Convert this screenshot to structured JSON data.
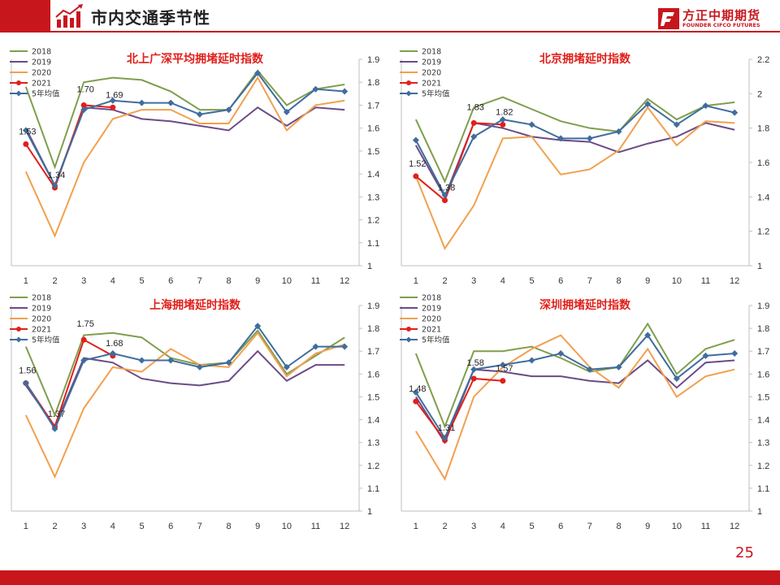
{
  "header": {
    "title": "市内交通季节性"
  },
  "logo": {
    "cn": "方正中期期货",
    "en": "FOUNDER CIFCO FUTURES"
  },
  "page_number": "25",
  "colors": {
    "s2018": "#7f9e4e",
    "s2019": "#6b4c86",
    "s2020": "#f2a04f",
    "s2021": "#e0201b",
    "avg": "#3f6d9e",
    "brand": "#c8161d"
  },
  "chart_data": [
    {
      "type": "line",
      "title": "北上广深平均拥堵延时指数",
      "x": [
        1,
        2,
        3,
        4,
        5,
        6,
        7,
        8,
        9,
        10,
        11,
        12
      ],
      "ylim": [
        1,
        1.9
      ],
      "yticks": [
        "1",
        "1.1",
        "1.2",
        "1.3",
        "1.4",
        "1.5",
        "1.6",
        "1.7",
        "1.8",
        "1.9"
      ],
      "series": [
        {
          "name": "2018",
          "values": [
            1.78,
            1.43,
            1.8,
            1.82,
            1.81,
            1.76,
            1.68,
            1.68,
            1.85,
            1.7,
            1.77,
            1.79
          ]
        },
        {
          "name": "2019",
          "values": [
            1.6,
            1.35,
            1.69,
            1.68,
            1.64,
            1.63,
            1.61,
            1.59,
            1.69,
            1.61,
            1.69,
            1.68
          ]
        },
        {
          "name": "2020",
          "values": [
            1.41,
            1.13,
            1.45,
            1.64,
            1.68,
            1.68,
            1.62,
            1.62,
            1.82,
            1.59,
            1.7,
            1.72
          ]
        },
        {
          "name": "2021",
          "values": [
            1.53,
            1.34,
            1.7,
            1.69
          ]
        },
        {
          "name": "5年均值",
          "values": [
            1.59,
            1.35,
            1.68,
            1.72,
            1.71,
            1.71,
            1.66,
            1.68,
            1.84,
            1.67,
            1.77,
            1.76
          ]
        }
      ],
      "labels": [
        "1.53",
        "1.34",
        "1.70",
        "1.69"
      ],
      "legend": "top-left"
    },
    {
      "type": "line",
      "title": "北京拥堵延时指数",
      "x": [
        1,
        2,
        3,
        4,
        5,
        6,
        7,
        8,
        9,
        10,
        11,
        12
      ],
      "ylim": [
        1,
        2.2
      ],
      "yticks": [
        "1",
        "1.2",
        "1.4",
        "1.6",
        "1.8",
        "2",
        "2.2"
      ],
      "series": [
        {
          "name": "2018",
          "values": [
            1.85,
            1.49,
            1.92,
            1.98,
            1.91,
            1.84,
            1.8,
            1.78,
            1.97,
            1.85,
            1.93,
            1.95
          ]
        },
        {
          "name": "2019",
          "values": [
            1.7,
            1.4,
            1.83,
            1.8,
            1.75,
            1.73,
            1.72,
            1.66,
            1.71,
            1.75,
            1.83,
            1.79
          ]
        },
        {
          "name": "2020",
          "values": [
            1.52,
            1.1,
            1.35,
            1.74,
            1.75,
            1.53,
            1.56,
            1.67,
            1.92,
            1.7,
            1.84,
            1.83
          ]
        },
        {
          "name": "2021",
          "values": [
            1.52,
            1.38,
            1.83,
            1.82
          ]
        },
        {
          "name": "5年均值",
          "values": [
            1.73,
            1.41,
            1.75,
            1.85,
            1.82,
            1.74,
            1.74,
            1.78,
            1.94,
            1.82,
            1.93,
            1.89
          ]
        }
      ],
      "labels": [
        "1.52",
        "1.38",
        "1.83",
        "1.82"
      ],
      "legend": "top-left"
    },
    {
      "type": "line",
      "title": "上海拥堵延时指数",
      "x": [
        1,
        2,
        3,
        4,
        5,
        6,
        7,
        8,
        9,
        10,
        11,
        12
      ],
      "ylim": [
        1,
        1.9
      ],
      "yticks": [
        "1",
        "1.1",
        "1.2",
        "1.3",
        "1.4",
        "1.5",
        "1.6",
        "1.7",
        "1.8",
        "1.9"
      ],
      "series": [
        {
          "name": "2018",
          "values": [
            1.72,
            1.42,
            1.77,
            1.78,
            1.76,
            1.67,
            1.64,
            1.65,
            1.79,
            1.6,
            1.68,
            1.76
          ]
        },
        {
          "name": "2019",
          "values": [
            1.55,
            1.37,
            1.67,
            1.65,
            1.58,
            1.56,
            1.55,
            1.57,
            1.7,
            1.57,
            1.64,
            1.64
          ]
        },
        {
          "name": "2020",
          "values": [
            1.42,
            1.15,
            1.45,
            1.63,
            1.61,
            1.71,
            1.64,
            1.63,
            1.78,
            1.59,
            1.69,
            1.73
          ]
        },
        {
          "name": "2021",
          "values": [
            1.56,
            1.37,
            1.75,
            1.68
          ]
        },
        {
          "name": "5年均值",
          "values": [
            1.56,
            1.36,
            1.66,
            1.69,
            1.66,
            1.66,
            1.63,
            1.65,
            1.81,
            1.63,
            1.72,
            1.72
          ]
        }
      ],
      "labels": [
        "1.56",
        "1.37",
        "1.75",
        "1.68"
      ],
      "legend": "top-left"
    },
    {
      "type": "line",
      "title": "深圳拥堵延时指数",
      "x": [
        1,
        2,
        3,
        4,
        5,
        6,
        7,
        8,
        9,
        10,
        11,
        12
      ],
      "ylim": [
        1,
        1.9
      ],
      "yticks": [
        "1",
        "1.1",
        "1.2",
        "1.3",
        "1.4",
        "1.5",
        "1.6",
        "1.7",
        "1.8",
        "1.9"
      ],
      "series": [
        {
          "name": "2018",
          "values": [
            1.69,
            1.37,
            1.7,
            1.7,
            1.72,
            1.67,
            1.61,
            1.63,
            1.82,
            1.6,
            1.71,
            1.75
          ]
        },
        {
          "name": "2019",
          "values": [
            1.5,
            1.3,
            1.62,
            1.61,
            1.59,
            1.59,
            1.57,
            1.56,
            1.66,
            1.54,
            1.65,
            1.66
          ]
        },
        {
          "name": "2020",
          "values": [
            1.35,
            1.14,
            1.5,
            1.63,
            1.71,
            1.77,
            1.63,
            1.54,
            1.71,
            1.5,
            1.59,
            1.62
          ]
        },
        {
          "name": "2021",
          "values": [
            1.48,
            1.31,
            1.58,
            1.57
          ]
        },
        {
          "name": "5年均值",
          "values": [
            1.52,
            1.32,
            1.62,
            1.64,
            1.66,
            1.69,
            1.62,
            1.63,
            1.77,
            1.58,
            1.68,
            1.69
          ]
        }
      ],
      "labels": [
        "1.48",
        "1.31",
        "1.58",
        "1.57"
      ],
      "legend": "top-left"
    }
  ]
}
